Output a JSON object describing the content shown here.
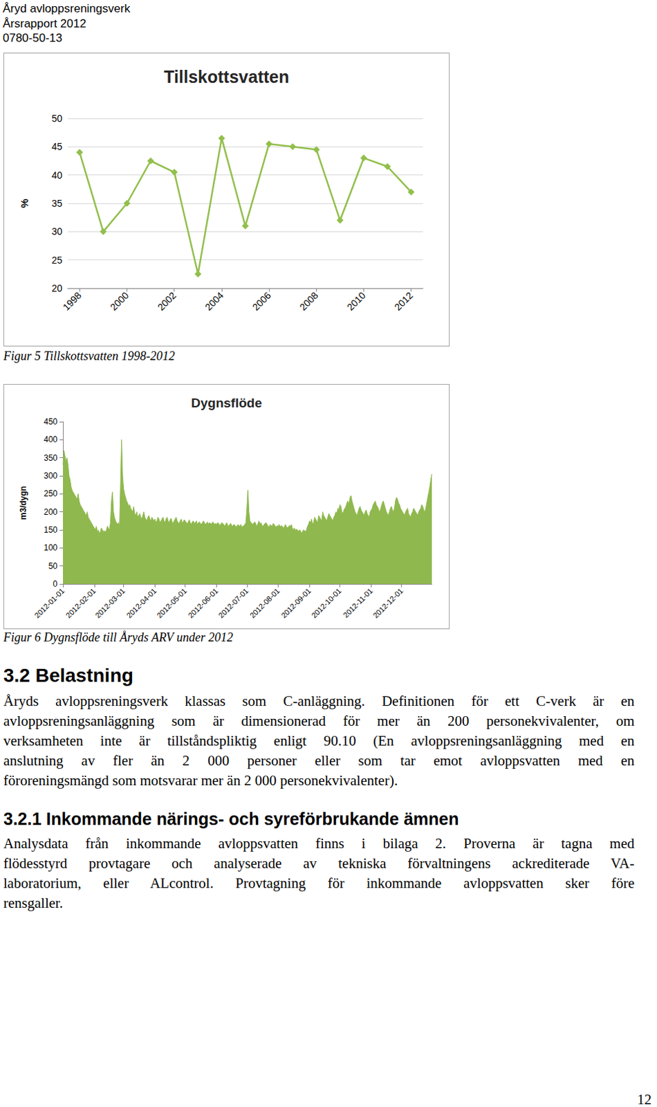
{
  "header": {
    "lines": [
      "Åryd avloppsreningsverk",
      "Årsrapport 2012",
      "0780-50-13"
    ]
  },
  "chart_data": [
    {
      "type": "line",
      "title": "Tillskottsvatten",
      "y_label": "%",
      "categories": [
        "1998",
        null,
        "2000",
        null,
        "2002",
        null,
        "2004",
        null,
        "2006",
        null,
        "2008",
        null,
        "2010",
        null,
        "2012"
      ],
      "values": [
        44,
        30,
        35,
        42.5,
        40.5,
        22.5,
        46.5,
        31,
        45.5,
        45,
        44.5,
        32,
        43,
        41.5,
        37
      ],
      "color": "#92bf4c",
      "marker": "diamond",
      "ylim": [
        20,
        50
      ],
      "yticks": [
        20,
        25,
        30,
        35,
        40,
        45,
        50
      ],
      "grid": true
    },
    {
      "type": "area",
      "title": "Dygnsflöde",
      "y_label": "m3/dygn",
      "categories": [
        "2012-01-01",
        null,
        null,
        null,
        null,
        null,
        null,
        null,
        null,
        null,
        null,
        null,
        null,
        null,
        null,
        null,
        null,
        null,
        null,
        null,
        null,
        null,
        null,
        null,
        null,
        null,
        null,
        null,
        null,
        null,
        null,
        "2012-02-01",
        null,
        null,
        null,
        null,
        null,
        null,
        null,
        null,
        null,
        null,
        null,
        null,
        null,
        null,
        null,
        null,
        null,
        null,
        null,
        null,
        null,
        null,
        null,
        null,
        null,
        null,
        null,
        null,
        "2012-03-01",
        null,
        null,
        null,
        null,
        null,
        null,
        null,
        null,
        null,
        null,
        null,
        null,
        null,
        null,
        null,
        null,
        null,
        null,
        null,
        null,
        null,
        null,
        null,
        null,
        null,
        null,
        null,
        null,
        null,
        null,
        "2012-04-01",
        null,
        null,
        null,
        null,
        null,
        null,
        null,
        null,
        null,
        null,
        null,
        null,
        null,
        null,
        null,
        null,
        null,
        null,
        null,
        null,
        null,
        null,
        null,
        null,
        null,
        null,
        null,
        null,
        null,
        "2012-05-01",
        null,
        null,
        null,
        null,
        null,
        null,
        null,
        null,
        null,
        null,
        null,
        null,
        null,
        null,
        null,
        null,
        null,
        null,
        null,
        null,
        null,
        null,
        null,
        null,
        null,
        null,
        null,
        null,
        null,
        null,
        "2012-06-01",
        null,
        null,
        null,
        null,
        null,
        null,
        null,
        null,
        null,
        null,
        null,
        null,
        null,
        null,
        null,
        null,
        null,
        null,
        null,
        null,
        null,
        null,
        null,
        null,
        null,
        null,
        null,
        null,
        null,
        "2012-07-01",
        null,
        null,
        null,
        null,
        null,
        null,
        null,
        null,
        null,
        null,
        null,
        null,
        null,
        null,
        null,
        null,
        null,
        null,
        null,
        null,
        null,
        null,
        null,
        null,
        null,
        null,
        null,
        null,
        null,
        null,
        "2012-08-01",
        null,
        null,
        null,
        null,
        null,
        null,
        null,
        null,
        null,
        null,
        null,
        null,
        null,
        null,
        null,
        null,
        null,
        null,
        null,
        null,
        null,
        null,
        null,
        null,
        null,
        null,
        null,
        null,
        null,
        null,
        "2012-09-01",
        null,
        null,
        null,
        null,
        null,
        null,
        null,
        null,
        null,
        null,
        null,
        null,
        null,
        null,
        null,
        null,
        null,
        null,
        null,
        null,
        null,
        null,
        null,
        null,
        null,
        null,
        null,
        null,
        null,
        "2012-10-01",
        null,
        null,
        null,
        null,
        null,
        null,
        null,
        null,
        null,
        null,
        null,
        null,
        null,
        null,
        null,
        null,
        null,
        null,
        null,
        null,
        null,
        null,
        null,
        null,
        null,
        null,
        null,
        null,
        null,
        null,
        "2012-11-01",
        null,
        null,
        null,
        null,
        null,
        null,
        null,
        null,
        null,
        null,
        null,
        null,
        null,
        null,
        null,
        null,
        null,
        null,
        null,
        null,
        null,
        null,
        null,
        null,
        null,
        null,
        null,
        null,
        null,
        "2012-12-01",
        null,
        null,
        null,
        null,
        null,
        null,
        null,
        null,
        null,
        null,
        null,
        null,
        null,
        null,
        null,
        null,
        null,
        null,
        null,
        null,
        null,
        null,
        null,
        null,
        null,
        null,
        null,
        null,
        null,
        null
      ],
      "values": [
        330,
        370,
        355,
        340,
        350,
        330,
        300,
        290,
        270,
        260,
        255,
        250,
        245,
        240,
        235,
        250,
        230,
        220,
        215,
        210,
        205,
        200,
        195,
        190,
        200,
        185,
        180,
        175,
        170,
        165,
        160,
        155,
        150,
        160,
        145,
        150,
        140,
        145,
        155,
        150,
        145,
        148,
        142,
        150,
        160,
        155,
        150,
        170,
        230,
        255,
        200,
        185,
        175,
        170,
        165,
        170,
        160,
        280,
        400,
        300,
        265,
        250,
        240,
        230,
        225,
        215,
        220,
        210,
        205,
        200,
        215,
        195,
        190,
        200,
        185,
        190,
        195,
        185,
        180,
        190,
        200,
        185,
        180,
        175,
        185,
        190,
        180,
        175,
        185,
        180,
        175,
        180,
        170,
        175,
        185,
        180,
        170,
        175,
        180,
        185,
        175,
        170,
        180,
        185,
        175,
        170,
        178,
        182,
        172,
        168,
        175,
        180,
        185,
        175,
        170,
        168,
        175,
        180,
        170,
        172,
        178,
        175,
        170,
        168,
        172,
        178,
        170,
        165,
        172,
        175,
        168,
        170,
        175,
        165,
        170,
        172,
        168,
        165,
        170,
        175,
        170,
        165,
        168,
        172,
        165,
        170,
        168,
        165,
        172,
        170,
        165,
        168,
        165,
        170,
        168,
        162,
        165,
        170,
        168,
        165,
        160,
        165,
        170,
        163,
        160,
        165,
        168,
        162,
        160,
        165,
        163,
        160,
        158,
        165,
        162,
        160,
        165,
        158,
        160,
        162,
        165,
        170,
        210,
        260,
        200,
        175,
        170,
        168,
        165,
        170,
        172,
        165,
        160,
        168,
        175,
        165,
        170,
        162,
        160,
        165,
        168,
        170,
        165,
        160,
        158,
        165,
        162,
        160,
        168,
        165,
        160,
        158,
        162,
        160,
        165,
        158,
        162,
        160,
        155,
        158,
        165,
        160,
        155,
        158,
        162,
        160,
        165,
        155,
        150,
        155,
        148,
        152,
        150,
        145,
        150,
        148,
        140,
        145,
        150,
        148,
        145,
        150,
        160,
        165,
        175,
        170,
        180,
        165,
        170,
        185,
        180,
        175,
        170,
        190,
        185,
        180,
        175,
        200,
        190,
        185,
        180,
        175,
        185,
        195,
        190,
        185,
        180,
        175,
        185,
        190,
        200,
        195,
        210,
        205,
        220,
        215,
        200,
        195,
        205,
        210,
        215,
        225,
        230,
        220,
        240,
        245,
        230,
        220,
        210,
        200,
        195,
        190,
        200,
        210,
        215,
        205,
        200,
        195,
        190,
        200,
        205,
        195,
        190,
        185,
        200,
        205,
        210,
        220,
        225,
        230,
        220,
        215,
        210,
        200,
        205,
        215,
        225,
        230,
        220,
        210,
        200,
        195,
        190,
        200,
        210,
        215,
        205,
        200,
        210,
        230,
        240,
        235,
        225,
        220,
        210,
        205,
        200,
        195,
        190,
        200,
        205,
        210,
        195,
        190,
        185,
        195,
        200,
        210,
        205,
        200,
        195,
        190,
        200,
        205,
        210,
        220,
        215,
        205,
        200,
        210,
        225,
        240,
        255,
        270,
        290,
        305
      ],
      "color": "#8fb84e",
      "ylim": [
        0,
        450
      ],
      "yticks": [
        0,
        50,
        100,
        150,
        200,
        250,
        300,
        350,
        400,
        450
      ],
      "grid": false
    }
  ],
  "captions": [
    "Figur 5 Tillskottsvatten 1998-2012",
    "Figur 6 Dygnsflöde till Åryds ARV under 2012"
  ],
  "sections": [
    {
      "heading": "3.2 Belastning",
      "lines": [
        "Åryds avloppsreningsverk klassas som C-anläggning. Definitionen för ett C-verk är en",
        "avloppsreningsanläggning som är dimensionerad för mer än 200 personekvivalenter, om",
        "verksamheten inte är tillståndspliktig enligt 90.10 (En avloppsreningsanläggning med en",
        "anslutning av fler än 2 000 personer eller som tar emot avloppsvatten med en",
        "föroreningsmängd som motsvarar mer än 2 000 personekvivalenter)."
      ]
    },
    {
      "heading": "3.2.1 Inkommande närings- och syreförbrukande ämnen",
      "lines": [
        "Analysdata från inkommande avloppsvatten finns i bilaga 2. Proverna är tagna med",
        "flödesstyrd provtagare och analyserade av tekniska förvaltningens ackrediterade VA-",
        "laboratorium, eller ALcontrol. Provtagning för inkommande avloppsvatten sker före",
        "rensgaller."
      ]
    }
  ],
  "page_number": "12"
}
